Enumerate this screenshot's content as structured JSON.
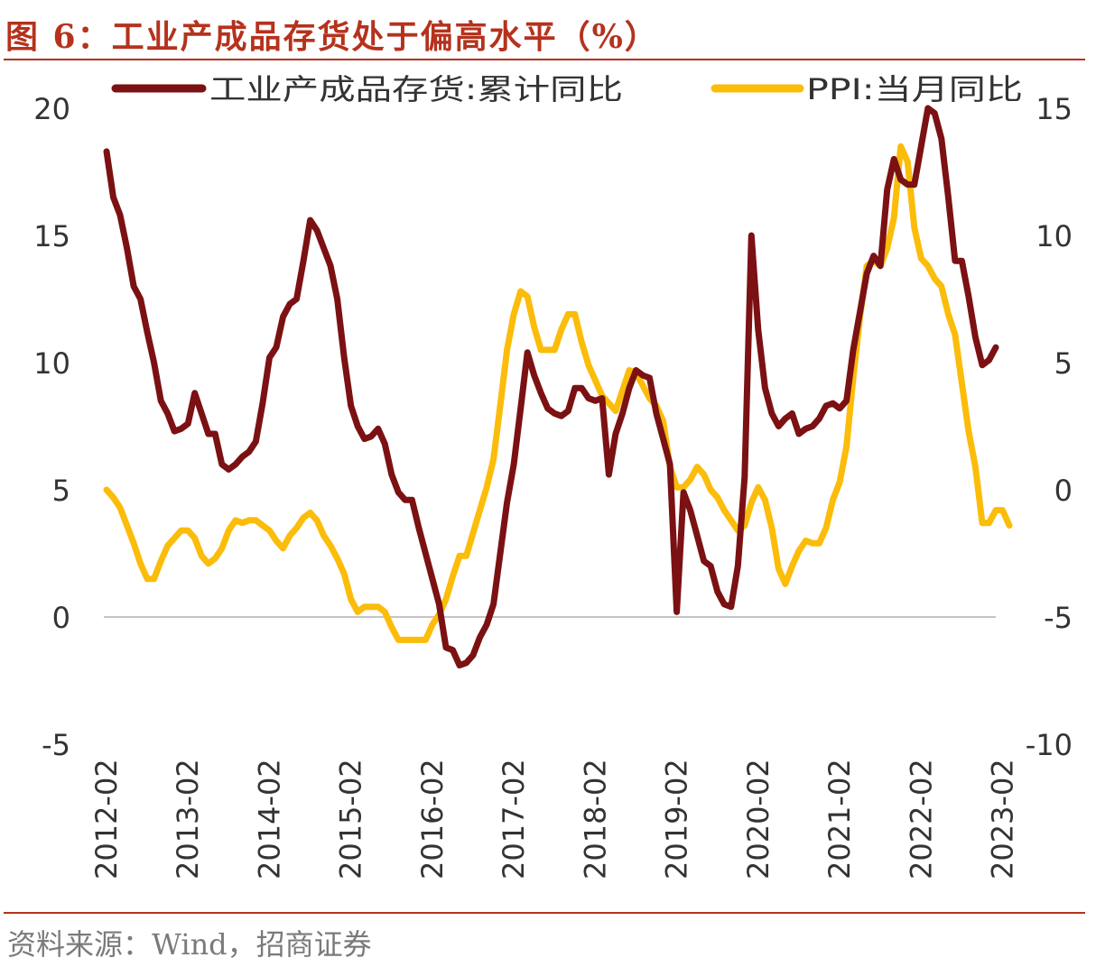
{
  "title": "图 6：工业产成品存货处于偏高水平（%）",
  "source": "资料来源：Wind，招商证券",
  "colors": {
    "accent": "#b5321d",
    "inventory": "#7b1113",
    "ppi": "#fbbc0a",
    "zero_line": "#b0b0b0"
  },
  "chart_data": {
    "type": "line",
    "title": "图 6：工业产成品存货处于偏高水平（%）",
    "x_tick_labels": [
      "2012-02",
      "2013-02",
      "2014-02",
      "2015-02",
      "2016-02",
      "2017-02",
      "2018-02",
      "2019-02",
      "2020-02",
      "2021-02",
      "2022-02",
      "2023-02"
    ],
    "y_left": {
      "range": [
        -5,
        20
      ],
      "ticks": [
        "20",
        "15",
        "10",
        "5",
        "0",
        "-5"
      ]
    },
    "y_right": {
      "range": [
        -10,
        15
      ],
      "ticks": [
        "15",
        "10",
        "5",
        "0",
        "-5",
        "-10"
      ]
    },
    "legend": [
      "工业产成品存货:累计同比",
      "PPI:当月同比"
    ],
    "series": [
      {
        "name": "工业产成品存货:累计同比",
        "axis": "left",
        "start": "2012-02",
        "values": [
          18.3,
          16.5,
          15.8,
          14.5,
          13.0,
          12.5,
          11.2,
          10.0,
          8.5,
          8.0,
          7.3,
          7.4,
          7.6,
          8.8,
          8.0,
          7.2,
          7.2,
          6.0,
          5.8,
          6.0,
          6.3,
          6.5,
          6.9,
          8.4,
          10.2,
          10.6,
          11.8,
          12.3,
          12.5,
          14.0,
          15.6,
          15.2,
          14.5,
          13.8,
          12.5,
          10.2,
          8.3,
          7.5,
          7.0,
          7.1,
          7.4,
          6.8,
          5.6,
          4.9,
          4.6,
          4.6,
          3.5,
          2.5,
          1.5,
          0.5,
          -1.2,
          -1.3,
          -1.9,
          -1.8,
          -1.5,
          -0.8,
          -0.3,
          0.5,
          2.5,
          4.5,
          6.0,
          8.2,
          10.4,
          9.5,
          8.8,
          8.2,
          8.0,
          7.9,
          8.1,
          9.0,
          9.0,
          8.6,
          8.5,
          8.6,
          5.6,
          7.2,
          8.0,
          9.0,
          9.7,
          9.5,
          9.4,
          8.0,
          7.0,
          6.0,
          0.2,
          4.9,
          4.2,
          3.2,
          2.2,
          2.0,
          1.0,
          0.5,
          0.4,
          2.0,
          5.5,
          15.0,
          11.3,
          9.0,
          8.0,
          7.5,
          7.8,
          8.0,
          7.2,
          7.4,
          7.5,
          7.8,
          8.3,
          8.4,
          8.2,
          8.5,
          10.5,
          12.0,
          13.5,
          14.2,
          13.8,
          16.8,
          18.0,
          17.2,
          17.0,
          17.0,
          18.5,
          20.0,
          19.8,
          18.8,
          16.5,
          14.0,
          14.0,
          12.6,
          11.0,
          9.9,
          10.1,
          10.6
        ]
      },
      {
        "name": "PPI:当月同比",
        "axis": "right",
        "start": "2012-02",
        "values": [
          0.0,
          -0.3,
          -0.7,
          -1.4,
          -2.1,
          -2.9,
          -3.5,
          -3.5,
          -2.8,
          -2.2,
          -1.9,
          -1.6,
          -1.6,
          -1.9,
          -2.6,
          -2.9,
          -2.7,
          -2.3,
          -1.6,
          -1.2,
          -1.3,
          -1.2,
          -1.2,
          -1.4,
          -1.6,
          -2.0,
          -2.3,
          -1.8,
          -1.5,
          -1.1,
          -0.9,
          -1.2,
          -1.8,
          -2.2,
          -2.7,
          -3.3,
          -4.3,
          -4.8,
          -4.6,
          -4.6,
          -4.6,
          -4.8,
          -5.4,
          -5.9,
          -5.9,
          -5.9,
          -5.9,
          -5.9,
          -5.3,
          -4.9,
          -4.3,
          -3.4,
          -2.6,
          -2.6,
          -1.7,
          -0.8,
          0.1,
          1.2,
          3.3,
          5.5,
          6.9,
          7.8,
          7.6,
          6.4,
          5.5,
          5.5,
          5.5,
          6.3,
          6.9,
          6.9,
          5.8,
          4.9,
          4.3,
          3.7,
          3.4,
          3.1,
          3.9,
          4.7,
          4.6,
          4.1,
          3.6,
          3.3,
          2.7,
          0.9,
          0.1,
          0.1,
          0.4,
          0.9,
          0.6,
          0.0,
          -0.3,
          -0.8,
          -1.2,
          -1.6,
          -1.4,
          -0.5,
          0.1,
          -0.4,
          -1.5,
          -3.1,
          -3.7,
          -3.0,
          -2.4,
          -2.0,
          -2.1,
          -2.1,
          -1.5,
          -0.4,
          0.3,
          1.7,
          4.4,
          6.8,
          8.8,
          9.0,
          8.8,
          9.5,
          10.7,
          13.5,
          12.9,
          10.3,
          9.1,
          8.8,
          8.3,
          8.0,
          6.9,
          6.1,
          4.2,
          2.3,
          0.9,
          -1.3,
          -1.3,
          -0.8,
          -0.8,
          -1.4
        ]
      }
    ]
  }
}
